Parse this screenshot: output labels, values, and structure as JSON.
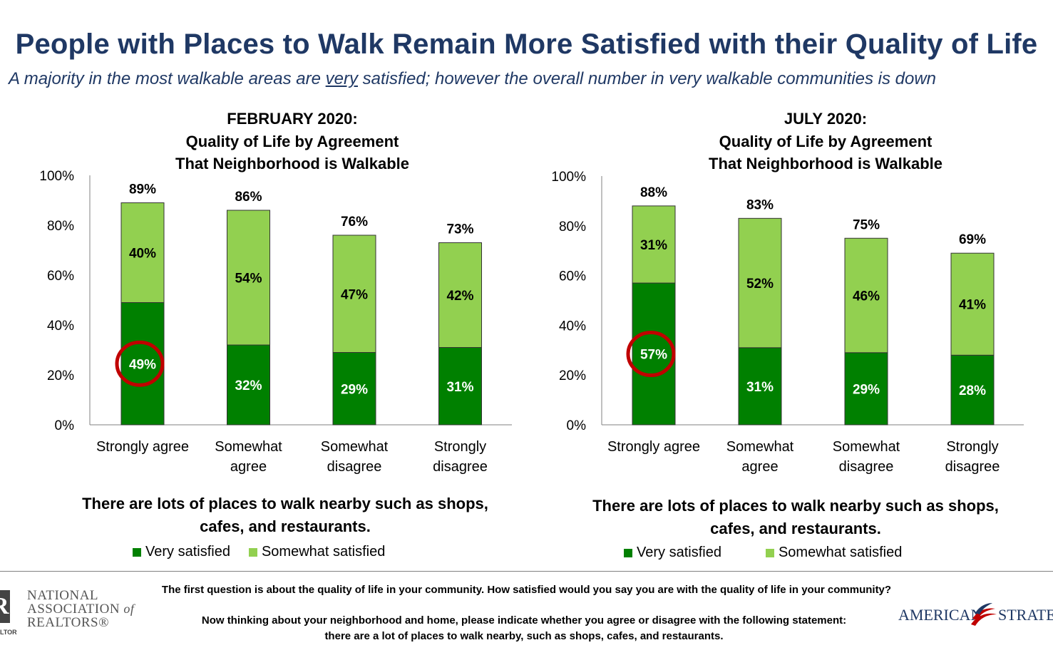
{
  "title": "People with Places to Walk Remain More Satisfied with their Quality of Life",
  "subtitle": {
    "before": "A majority in the most walkable areas are ",
    "underlined": "very",
    "after": " satisfied; however the overall number in very walkable communities is down"
  },
  "colors": {
    "very_satisfied": "#008000",
    "somewhat_satisfied": "#92d050",
    "highlight_circle": "#c00000",
    "title": "#1f3864"
  },
  "chart_data": [
    {
      "type": "bar",
      "stacked": true,
      "title_lines": [
        "FEBRUARY 2020:",
        "Quality of Life by Agreement",
        "That Neighborhood is Walkable"
      ],
      "categories": [
        "Strongly agree",
        "Somewhat agree",
        "Somewhat disagree",
        "Strongly disagree"
      ],
      "category_lines": [
        [
          "Strongly agree"
        ],
        [
          "Somewhat",
          "agree"
        ],
        [
          "Somewhat",
          "disagree"
        ],
        [
          "Strongly",
          "disagree"
        ]
      ],
      "series": [
        {
          "name": "Very satisfied",
          "values": [
            49,
            32,
            29,
            31
          ]
        },
        {
          "name": "Somewhat satisfied",
          "values": [
            40,
            54,
            47,
            42
          ]
        }
      ],
      "totals": [
        89,
        86,
        76,
        73
      ],
      "yticks": [
        "0%",
        "20%",
        "40%",
        "60%",
        "80%",
        "100%"
      ],
      "ylim": [
        0,
        100
      ],
      "highlighted": {
        "category": "Strongly agree",
        "series": "Very satisfied"
      },
      "statement_lines": [
        "There are lots of places to walk nearby such as shops,",
        "cafes, and restaurants."
      ],
      "legend": [
        "Very satisfied",
        "Somewhat satisfied"
      ],
      "legend_position": "bottom",
      "grid": false
    },
    {
      "type": "bar",
      "stacked": true,
      "title_lines": [
        "JULY 2020:",
        "Quality of Life by Agreement",
        "That Neighborhood is Walkable"
      ],
      "categories": [
        "Strongly agree",
        "Somewhat agree",
        "Somewhat disagree",
        "Strongly disagree"
      ],
      "category_lines": [
        [
          "Strongly agree"
        ],
        [
          "Somewhat",
          "agree"
        ],
        [
          "Somewhat",
          "disagree"
        ],
        [
          "Strongly",
          "disagree"
        ]
      ],
      "series": [
        {
          "name": "Very satisfied",
          "values": [
            57,
            31,
            29,
            28
          ]
        },
        {
          "name": "Somewhat satisfied",
          "values": [
            31,
            52,
            46,
            41
          ]
        }
      ],
      "totals": [
        88,
        83,
        75,
        69
      ],
      "yticks": [
        "0%",
        "20%",
        "40%",
        "60%",
        "80%",
        "100%"
      ],
      "ylim": [
        0,
        100
      ],
      "highlighted": {
        "category": "Strongly agree",
        "series": "Very satisfied"
      },
      "statement_lines": [
        "There are lots of places to walk nearby such as shops,",
        "cafes, and restaurants."
      ],
      "legend": [
        "Very satisfied",
        "Somewhat satisfied"
      ],
      "legend_position": "bottom",
      "grid": false
    }
  ],
  "footer": {
    "question_1": "The first question is about the quality of life in your community. How satisfied would you say you are with the quality of life in your community?",
    "question_2_line_1": "Now thinking about your neighborhood and home, please indicate whether you agree or disagree with the following statement:",
    "question_2_line_2": "there are a lot of places to walk nearby, such as shops, cafes, and restaurants.",
    "logo_left": {
      "line_1": "NATIONAL",
      "line_2": "ASSOCIATION",
      "line_2_suffix": "of",
      "line_3": "REALTORS®",
      "mark_text": "LTOR"
    },
    "logo_right": {
      "word_1": "AMERICAN",
      "word_2": "STRATEGIES"
    }
  }
}
